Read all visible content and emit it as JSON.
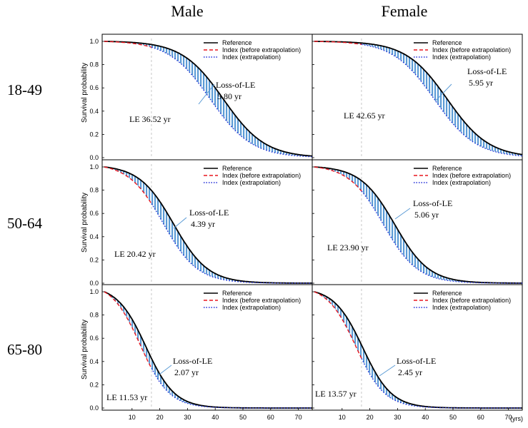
{
  "chart_data": {
    "type": "line",
    "title": "",
    "column_titles": [
      "Male",
      "Female"
    ],
    "row_labels": [
      "18-49",
      "50-64",
      "65-80"
    ],
    "ylabel": "Survival probability",
    "xlabel": "(yrs)",
    "xlim": [
      0,
      75
    ],
    "ylim": [
      0,
      1.0
    ],
    "x_ticks": [
      10,
      20,
      30,
      40,
      50,
      60,
      70
    ],
    "y_ticks": [
      "0.0",
      "0.2",
      "0.4",
      "0.6",
      "0.8",
      "1.0"
    ],
    "reference_x_line": 17,
    "legend": {
      "placement": "top-right",
      "entries": [
        {
          "label": "Reference",
          "style": "solid",
          "color": "#000000"
        },
        {
          "label": "Index (before extrapolation)",
          "style": "dashed",
          "color": "#e8161f"
        },
        {
          "label": "Index (extrapolation)",
          "style": "dotted",
          "color": "#1f2bd8"
        }
      ]
    },
    "shade_color": "#5b9bd5",
    "panels": [
      {
        "row": "18-49",
        "sex": "Male",
        "ref_median": 43,
        "ref_spread": 7.5,
        "index_median": 38.2,
        "index_spread": 7.5,
        "le_label": "LE  36.52  yr",
        "loss_title": "Loss-of-LE",
        "loss_value": "5.80  yr"
      },
      {
        "row": "18-49",
        "sex": "Female",
        "ref_median": 48,
        "ref_spread": 7.5,
        "index_median": 43.3,
        "index_spread": 7.5,
        "le_label": "LE  42.65  yr",
        "loss_title": "Loss-of-LE",
        "loss_value": "5.95  yr"
      },
      {
        "row": "50-64",
        "sex": "Male",
        "ref_median": 25,
        "ref_spread": 6.2,
        "index_median": 21.2,
        "index_spread": 6.2,
        "le_label": "LE  20.42  yr",
        "loss_title": "Loss-of-LE",
        "loss_value": "4.39  yr"
      },
      {
        "row": "50-64",
        "sex": "Female",
        "ref_median": 29,
        "ref_spread": 6.2,
        "index_median": 24.8,
        "index_spread": 6.2,
        "le_label": "LE  23.90  yr",
        "loss_title": "Loss-of-LE",
        "loss_value": "5.06  yr"
      },
      {
        "row": "65-80",
        "sex": "Male",
        "ref_median": 15,
        "ref_spread": 5.2,
        "index_median": 13.0,
        "index_spread": 5.2,
        "le_label": "LE  11.53  yr",
        "loss_title": "Loss-of-LE",
        "loss_value": "2.07  yr"
      },
      {
        "row": "65-80",
        "sex": "Female",
        "ref_median": 17.5,
        "ref_spread": 5.2,
        "index_median": 15.0,
        "index_spread": 5.2,
        "le_label": "LE  13.57  yr",
        "loss_title": "Loss-of-LE",
        "loss_value": "2.45  yr"
      }
    ]
  }
}
